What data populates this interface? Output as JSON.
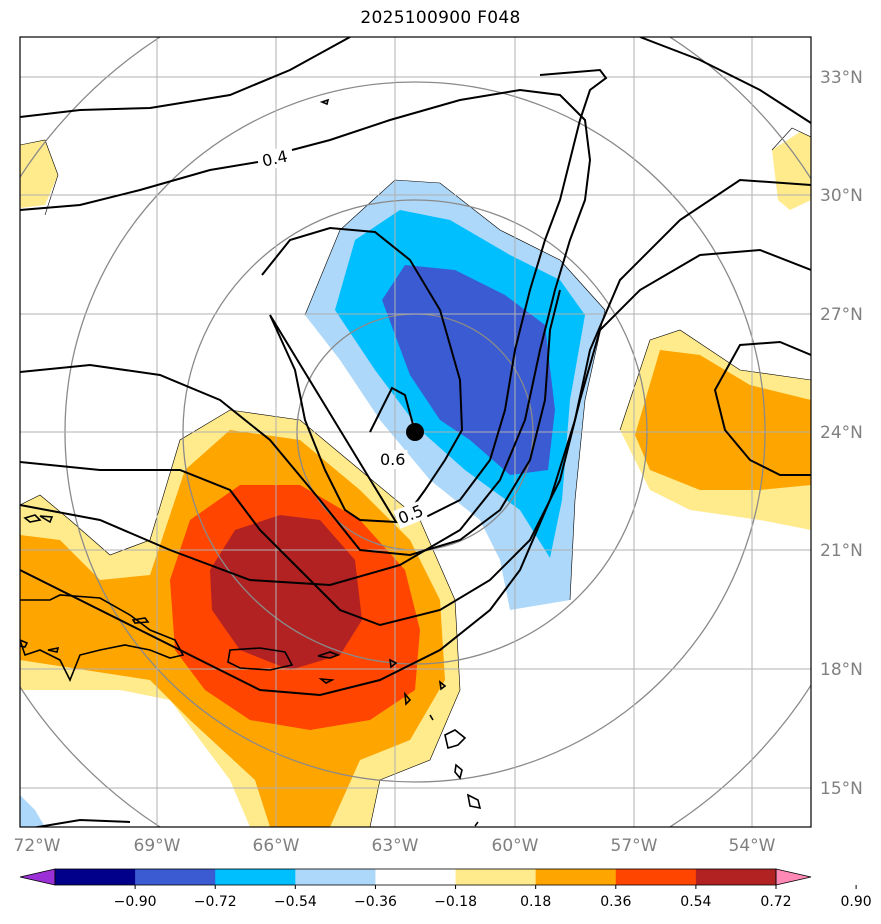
{
  "title": "2025100900 F048",
  "lon_labels": [
    "72°W",
    "69°W",
    "66°W",
    "63°W",
    "60°W",
    "57°W",
    "54°W"
  ],
  "lat_labels": [
    "33°N",
    "30°N",
    "27°N",
    "24°N",
    "21°N",
    "18°N",
    "15°N"
  ],
  "contour_labels": [
    "0.4",
    "0.5",
    "0.6"
  ],
  "colorbar": {
    "colors": [
      "#9b30d6",
      "#00008b",
      "#3b5bd3",
      "#00bfff",
      "#add8fa",
      "#ffffff",
      "#ffea8c",
      "#ffa500",
      "#ff4500",
      "#b22222",
      "#ff88b4"
    ],
    "tick_labels": [
      "−0.90",
      "−0.72",
      "−0.54",
      "−0.36",
      "−0.18",
      "0.18",
      "0.36",
      "0.54",
      "0.72",
      "0.90"
    ]
  },
  "center_marker": {
    "lon": -62.5,
    "lat": 24.0
  }
}
